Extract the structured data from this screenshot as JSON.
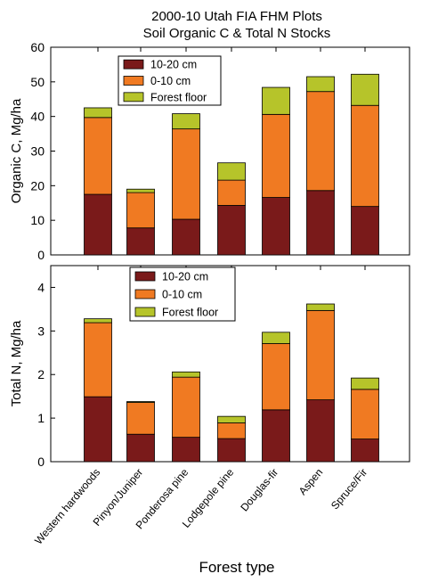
{
  "title": [
    "2000-10 Utah FIA FHM Plots",
    "Soil Organic C & Total N Stocks"
  ],
  "xlabel": "Forest type",
  "colors": {
    "layer_10_20": "#7a1a1a",
    "layer_0_10": "#f07a22",
    "forest_floor": "#b6c42a"
  },
  "chart_data": [
    {
      "type": "bar",
      "stacked": true,
      "ylabel": "Organic C, Mg/ha",
      "ylim": [
        0,
        60
      ],
      "yticks": [
        0,
        10,
        20,
        30,
        40,
        50,
        60
      ],
      "categories": [
        "Western hardwoods",
        "Pinyon/Juniper",
        "Ponderosa pine",
        "Lodgepole pine",
        "Douglas-fir",
        "Aspen",
        "Spruce/Fir"
      ],
      "legend_position": "top-left",
      "series": [
        {
          "name": "10-20 cm",
          "values": [
            17.5,
            7.8,
            10.3,
            14.3,
            16.6,
            18.6,
            14.0
          ]
        },
        {
          "name": "0-10 cm",
          "values": [
            22.2,
            10.2,
            26.1,
            7.3,
            24.0,
            28.6,
            29.2
          ]
        },
        {
          "name": "Forest floor",
          "values": [
            2.8,
            1.0,
            4.4,
            5.0,
            7.8,
            4.3,
            9.0
          ]
        }
      ]
    },
    {
      "type": "bar",
      "stacked": true,
      "ylabel": "Total N, Mg/ha",
      "ylim": [
        0,
        4.5
      ],
      "yticks": [
        0,
        1,
        2,
        3,
        4
      ],
      "categories": [
        "Western hardwoods",
        "Pinyon/Juniper",
        "Ponderosa pine",
        "Lodgepole pine",
        "Douglas-fir",
        "Aspen",
        "Spruce/Fir"
      ],
      "legend_position": "top-left",
      "series": [
        {
          "name": "10-20 cm",
          "values": [
            1.49,
            0.63,
            0.56,
            0.53,
            1.19,
            1.42,
            0.52
          ]
        },
        {
          "name": "0-10 cm",
          "values": [
            1.7,
            0.73,
            1.38,
            0.36,
            1.52,
            2.05,
            1.14
          ]
        },
        {
          "name": "Forest floor",
          "values": [
            0.09,
            0.02,
            0.12,
            0.15,
            0.26,
            0.15,
            0.26
          ]
        }
      ]
    }
  ]
}
